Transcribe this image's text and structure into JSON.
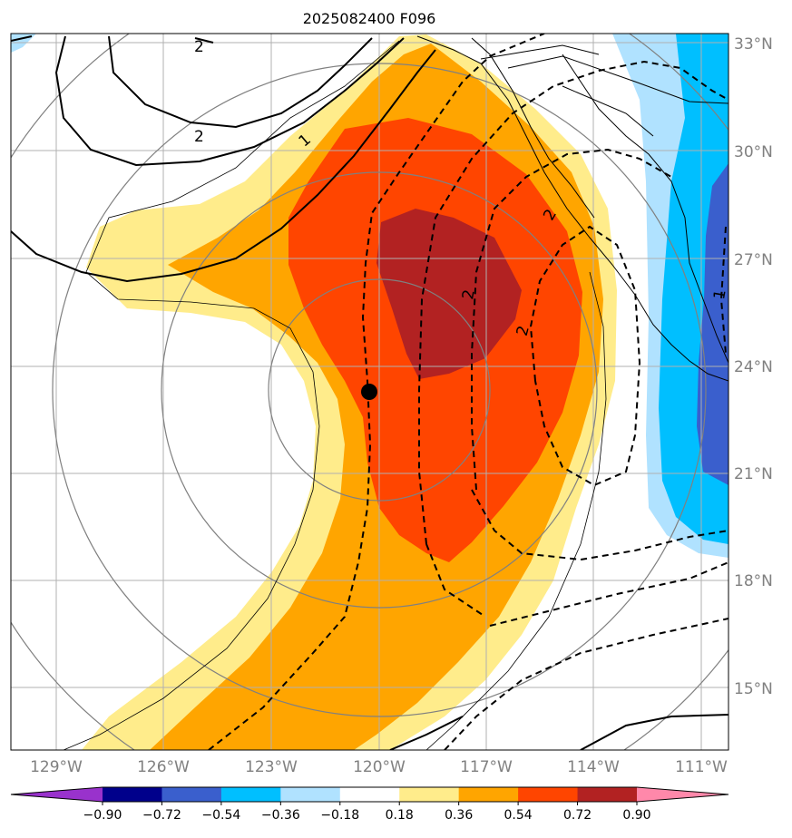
{
  "title": "2025082400 F096",
  "map": {
    "lat_ticks": [
      "33°N",
      "30°N",
      "27°N",
      "24°N",
      "21°N",
      "18°N",
      "15°N"
    ],
    "lon_ticks": [
      "129°W",
      "126°W",
      "123°W",
      "120°W",
      "117°W",
      "114°W",
      "111°W"
    ],
    "center_marker": {
      "lon": -120.2,
      "lat": 23.0
    }
  },
  "contour_labels": [
    "2",
    "2",
    "1",
    "2",
    "2",
    "2",
    "1"
  ],
  "colorbar": {
    "levels": [
      "−0.90",
      "−0.72",
      "−0.54",
      "−0.36",
      "−0.18",
      "0.18",
      "0.36",
      "0.54",
      "0.72",
      "0.90"
    ],
    "colors": [
      "#9932cc",
      "#00008b",
      "#3a5fcd",
      "#00bfff",
      "#b0e2ff",
      "#ffffff",
      "#ffec8b",
      "#ffa500",
      "#ff4500",
      "#b22222",
      "#ff88aa"
    ]
  }
}
